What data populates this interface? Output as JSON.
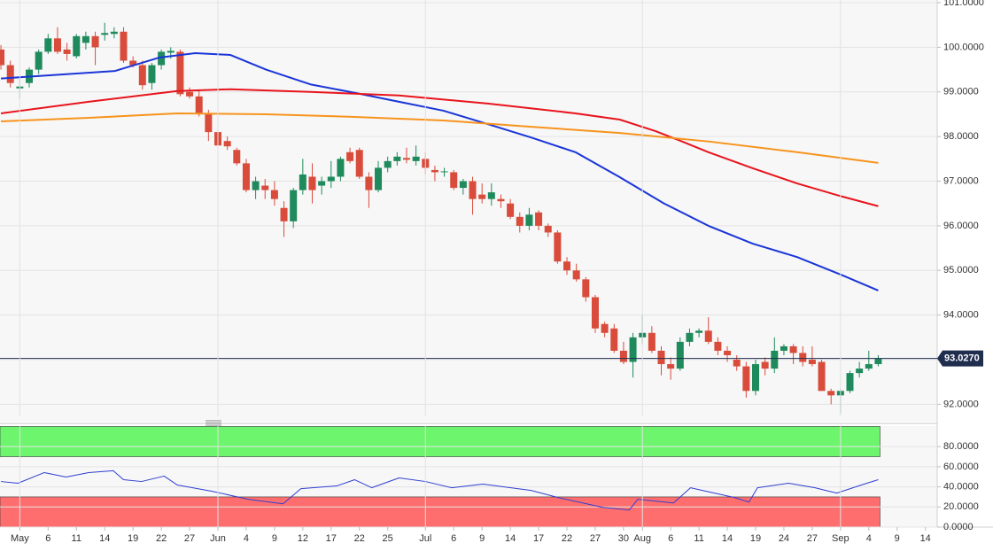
{
  "chart_data": [
    {
      "type": "candlestick",
      "x": [
        0,
        1,
        2,
        3,
        4,
        5,
        6,
        7,
        8,
        9,
        10,
        11,
        12,
        13,
        14,
        15,
        16,
        17,
        18,
        19,
        20,
        21,
        22,
        23,
        24,
        25,
        26,
        27,
        28,
        29,
        30,
        31,
        32,
        33,
        34,
        35,
        36,
        37,
        38,
        39,
        40,
        41,
        42,
        43,
        44,
        45,
        46,
        47,
        48,
        49,
        50,
        51,
        52,
        53,
        54,
        55,
        56,
        57,
        58,
        59,
        60,
        61,
        62,
        63,
        64,
        65,
        66,
        67,
        68,
        69,
        70,
        71,
        72,
        73,
        74,
        75,
        76,
        77,
        78,
        79,
        80,
        81,
        82,
        83,
        84,
        85,
        86,
        87,
        88,
        89,
        90,
        91,
        92,
        93
      ],
      "open": [
        99.95,
        99.6,
        99.08,
        99.2,
        99.5,
        99.9,
        100.2,
        99.95,
        99.8,
        100.1,
        100.25,
        100.28,
        100.3,
        100.35,
        99.7,
        99.6,
        99.2,
        99.6,
        99.88,
        99.9,
        99.0,
        98.9,
        98.5,
        98.1,
        97.9,
        97.7,
        97.4,
        96.8,
        96.9,
        96.8,
        96.4,
        96.1,
        96.8,
        97.1,
        96.9,
        97.0,
        97.1,
        97.65,
        97.7,
        97.1,
        96.8,
        97.3,
        97.45,
        97.52,
        97.45,
        97.5,
        97.25,
        97.2,
        97.2,
        96.85,
        97.0,
        96.7,
        96.6,
        96.6,
        96.5,
        96.2,
        96.0,
        96.3,
        96.0,
        95.85,
        95.2,
        95.0,
        94.8,
        94.4,
        93.8,
        93.7,
        93.2,
        92.95,
        93.5,
        93.6,
        93.2,
        92.9,
        92.8,
        93.4,
        93.6,
        93.65,
        93.4,
        93.2,
        93.0,
        92.85,
        92.3,
        92.95,
        92.8,
        93.2,
        93.3,
        93.15,
        93.0,
        92.95,
        92.3,
        92.2,
        92.3,
        92.7,
        92.8,
        92.9
      ],
      "high": [
        100.05,
        99.7,
        99.3,
        99.55,
        99.95,
        100.3,
        100.45,
        100.1,
        100.3,
        100.35,
        100.35,
        100.55,
        100.45,
        100.45,
        99.8,
        99.7,
        99.65,
        99.95,
        100.0,
        99.95,
        99.1,
        99.05,
        98.6,
        98.2,
        98.0,
        97.75,
        97.5,
        97.1,
        97.05,
        97.0,
        96.55,
        96.85,
        97.5,
        97.4,
        97.1,
        97.45,
        97.55,
        97.75,
        97.75,
        97.2,
        97.45,
        97.55,
        97.65,
        97.75,
        97.8,
        97.65,
        97.35,
        97.3,
        97.25,
        97.05,
        97.1,
        96.95,
        96.95,
        96.7,
        96.6,
        96.3,
        96.4,
        96.35,
        96.05,
        95.9,
        95.3,
        95.15,
        94.85,
        94.45,
        93.85,
        93.8,
        93.4,
        93.6,
        94.0,
        93.75,
        93.3,
        93.05,
        93.5,
        93.7,
        93.7,
        93.95,
        93.5,
        93.3,
        93.1,
        92.95,
        93.0,
        93.05,
        93.5,
        93.35,
        93.35,
        93.3,
        93.3,
        93.0,
        92.35,
        92.35,
        92.75,
        92.95,
        93.2,
        93.1
      ],
      "low": [
        99.5,
        99.1,
        98.85,
        99.1,
        99.4,
        99.85,
        99.85,
        99.7,
        99.75,
        99.95,
        99.6,
        100.15,
        100.2,
        99.65,
        99.55,
        99.05,
        99.05,
        99.5,
        99.75,
        98.9,
        98.85,
        98.45,
        97.9,
        97.75,
        97.7,
        97.35,
        96.75,
        96.6,
        96.6,
        96.45,
        95.75,
        95.95,
        96.7,
        96.5,
        96.7,
        96.85,
        97.0,
        97.4,
        97.05,
        96.4,
        96.75,
        97.2,
        97.35,
        97.4,
        97.35,
        97.15,
        97.0,
        97.1,
        96.8,
        96.7,
        96.25,
        96.5,
        96.45,
        96.4,
        96.15,
        95.85,
        95.9,
        95.9,
        95.75,
        95.15,
        94.9,
        94.75,
        94.3,
        93.6,
        93.5,
        93.15,
        92.9,
        92.6,
        93.35,
        93.15,
        92.65,
        92.55,
        92.75,
        93.3,
        93.5,
        93.35,
        93.1,
        92.95,
        92.75,
        92.15,
        92.2,
        92.65,
        92.7,
        93.1,
        92.9,
        92.85,
        92.85,
        92.3,
        92.0,
        91.8,
        92.25,
        92.6,
        92.75,
        92.85
      ],
      "close": [
        99.6,
        99.2,
        99.12,
        99.5,
        99.9,
        100.2,
        99.9,
        99.85,
        100.25,
        100.25,
        100.0,
        100.32,
        100.35,
        99.7,
        99.6,
        99.15,
        99.6,
        99.9,
        99.92,
        98.95,
        98.9,
        98.5,
        98.1,
        97.8,
        97.78,
        97.4,
        96.8,
        97.0,
        96.8,
        96.6,
        96.1,
        96.8,
        97.15,
        96.8,
        97.0,
        97.1,
        97.5,
        97.45,
        97.1,
        96.8,
        97.3,
        97.45,
        97.55,
        97.48,
        97.55,
        97.3,
        97.2,
        97.22,
        96.85,
        97.0,
        96.6,
        96.6,
        96.75,
        96.55,
        96.2,
        96.0,
        96.25,
        96.0,
        95.85,
        95.2,
        95.0,
        94.8,
        94.4,
        93.7,
        93.6,
        93.2,
        92.95,
        93.5,
        93.6,
        93.2,
        92.9,
        92.8,
        93.4,
        93.6,
        93.65,
        93.4,
        93.2,
        93.1,
        92.85,
        92.3,
        92.9,
        92.8,
        93.2,
        93.3,
        93.15,
        92.95,
        92.9,
        92.3,
        92.2,
        92.3,
        92.7,
        92.8,
        92.9,
        93.027
      ],
      "up_color": "#1f8a5c",
      "down_color": "#d94c3c",
      "xlim": [
        -0.1,
        99.25
      ],
      "ylim": [
        91.73,
        101.06
      ],
      "yticks": [
        {
          "value": 92,
          "label": "92.0000"
        },
        {
          "value": 93,
          "label": ""
        },
        {
          "value": 94,
          "label": "94.0000"
        },
        {
          "value": 95,
          "label": "95.0000"
        },
        {
          "value": 96,
          "label": "96.0000"
        },
        {
          "value": 97,
          "label": "97.0000"
        },
        {
          "value": 98,
          "label": "98.0000"
        },
        {
          "value": 99,
          "label": "99.0000"
        },
        {
          "value": 100,
          "label": "100.0000"
        },
        {
          "value": 101,
          "label": "101.0000"
        }
      ],
      "grid": true,
      "lines": [
        {
          "color": "#1a35d8",
          "x": [
            0,
            12.1,
            16.8,
            20.6,
            24.3,
            28.1,
            32.8,
            37.5,
            42.2,
            46.9,
            51.6,
            56.2,
            60.9,
            65.6,
            70.3,
            75.0,
            79.7,
            84.4,
            89.1,
            93
          ],
          "values": [
            99.3,
            99.47,
            99.77,
            99.87,
            99.83,
            99.5,
            99.17,
            98.98,
            98.78,
            98.58,
            98.28,
            97.98,
            97.65,
            97.09,
            96.5,
            96.0,
            95.6,
            95.3,
            94.9,
            94.55
          ]
        },
        {
          "color": "#e8141c",
          "x": [
            0,
            9.3,
            18.7,
            24.3,
            32.8,
            42.2,
            51.6,
            60.9,
            65.6,
            69.4,
            72.2,
            75.0,
            79.7,
            84.4,
            89.1,
            93
          ],
          "values": [
            98.52,
            98.78,
            99.02,
            99.06,
            99.0,
            98.92,
            98.74,
            98.52,
            98.38,
            98.12,
            97.89,
            97.65,
            97.29,
            96.95,
            96.66,
            96.44
          ]
        },
        {
          "color": "#f7941d",
          "x": [
            0,
            9.3,
            18.7,
            28.1,
            37.5,
            46.9,
            56.2,
            65.6,
            75.0,
            84.4,
            93
          ],
          "values": [
            98.34,
            98.42,
            98.52,
            98.5,
            98.44,
            98.36,
            98.22,
            98.08,
            97.89,
            97.65,
            97.41
          ]
        }
      ],
      "last_price": {
        "value": 93.027,
        "label": "93.0270"
      }
    },
    {
      "type": "line",
      "x": [
        0,
        1.8,
        4.6,
        6.9,
        9.3,
        11.9,
        13.0,
        14.9,
        17.3,
        18.7,
        22.4,
        26.2,
        29.9,
        31.8,
        35.6,
        37.5,
        39.3,
        42.2,
        45,
        47.8,
        51.1,
        56.2,
        59.1,
        63.8,
        66.6,
        67.5,
        71.3,
        73.1,
        77.8,
        79.3,
        80.2,
        83.5,
        86.3,
        88.6,
        91.5,
        93
      ],
      "values": [
        45.3,
        43.6,
        54.2,
        49.8,
        54.2,
        56,
        47.1,
        45.3,
        50.7,
        41.8,
        35.6,
        27.6,
        23.1,
        38.2,
        40.9,
        47.1,
        39.1,
        48.9,
        45.3,
        39.1,
        42.7,
        36.4,
        29.3,
        19.6,
        16.9,
        27.6,
        24,
        39.1,
        29.3,
        24.9,
        39.1,
        43.6,
        39.1,
        33.8,
        42.7,
        47.1
      ],
      "color": "#2f3fd0",
      "xlim": [
        -0.1,
        99.25
      ],
      "ylim": [
        0,
        100.4
      ],
      "yticks": [
        {
          "value": 0,
          "label": "0.0000"
        },
        {
          "value": 20,
          "label": "20.0000"
        },
        {
          "value": 40,
          "label": "40.0000"
        },
        {
          "value": 60,
          "label": "60.0000"
        },
        {
          "value": 80,
          "label": "80.0000"
        }
      ],
      "grid": true,
      "zones": [
        {
          "range": [
            70,
            100
          ],
          "color": "#6ef56e"
        },
        {
          "range": [
            0,
            30
          ],
          "color": "#ff6e6e"
        }
      ],
      "xticks": [
        {
          "value": 2,
          "label": "May"
        },
        {
          "value": 5,
          "label": "6"
        },
        {
          "value": 8,
          "label": "11"
        },
        {
          "value": 11,
          "label": "14"
        },
        {
          "value": 14,
          "label": "19"
        },
        {
          "value": 17,
          "label": "22"
        },
        {
          "value": 20,
          "label": "27"
        },
        {
          "value": 23,
          "label": "Jun"
        },
        {
          "value": 26,
          "label": "4"
        },
        {
          "value": 29,
          "label": "9"
        },
        {
          "value": 32,
          "label": "12"
        },
        {
          "value": 35,
          "label": "17"
        },
        {
          "value": 38,
          "label": "22"
        },
        {
          "value": 41,
          "label": "25"
        },
        {
          "value": 45,
          "label": "Jul"
        },
        {
          "value": 48,
          "label": "6"
        },
        {
          "value": 51,
          "label": "9"
        },
        {
          "value": 54,
          "label": "14"
        },
        {
          "value": 57,
          "label": "17"
        },
        {
          "value": 60,
          "label": "22"
        },
        {
          "value": 63,
          "label": "27"
        },
        {
          "value": 66,
          "label": "30"
        },
        {
          "value": 68,
          "label": "Aug"
        },
        {
          "value": 71,
          "label": "6"
        },
        {
          "value": 74,
          "label": "11"
        },
        {
          "value": 77,
          "label": "14"
        },
        {
          "value": 80,
          "label": "19"
        },
        {
          "value": 83,
          "label": "24"
        },
        {
          "value": 86,
          "label": "27"
        },
        {
          "value": 89,
          "label": "Sep"
        },
        {
          "value": 92,
          "label": "4"
        },
        {
          "value": 95,
          "label": "9"
        },
        {
          "value": 98,
          "label": "14"
        }
      ]
    }
  ]
}
